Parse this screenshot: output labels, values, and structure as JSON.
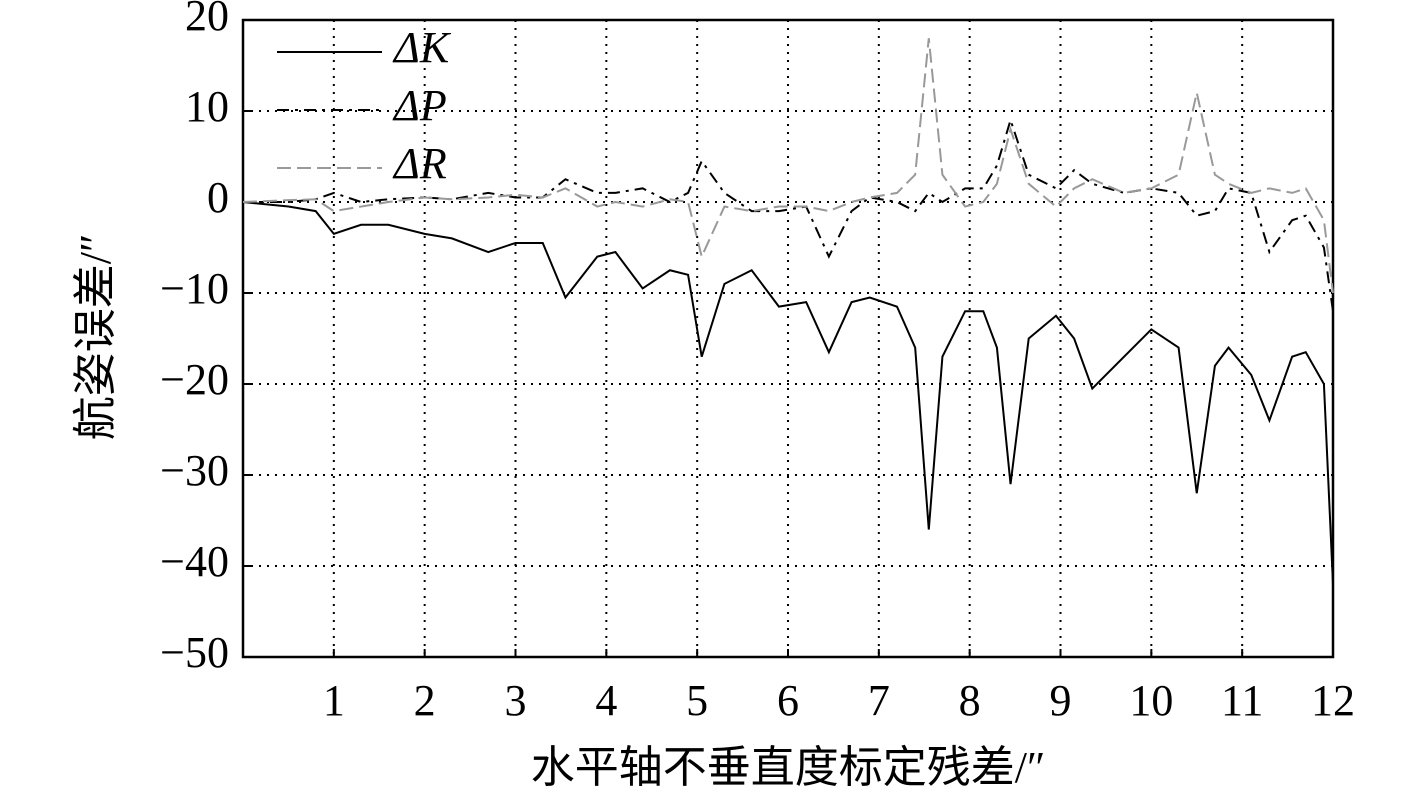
{
  "chart_data": {
    "type": "line",
    "ylabel": "航姿误差/″",
    "xlabel": "水平轴不垂直度标定残差/″",
    "x": [
      0,
      0.5,
      0.8,
      1.0,
      1.3,
      1.6,
      2.0,
      2.3,
      2.7,
      3.0,
      3.3,
      3.55,
      3.9,
      4.1,
      4.4,
      4.7,
      4.9,
      5.05,
      5.3,
      5.6,
      5.9,
      6.2,
      6.45,
      6.7,
      6.9,
      7.2,
      7.4,
      7.55,
      7.7,
      7.95,
      8.15,
      8.3,
      8.45,
      8.65,
      8.95,
      9.15,
      9.35,
      9.7,
      10.0,
      10.3,
      10.5,
      10.7,
      10.85,
      11.1,
      11.3,
      11.55,
      11.7,
      11.9,
      12.0
    ],
    "series": [
      {
        "name": "ΔK",
        "color": "#000000",
        "dash": "solid",
        "values": [
          0,
          -0.5,
          -1,
          -3.5,
          -2.5,
          -2.5,
          -3.5,
          -4,
          -5.5,
          -4.5,
          -4.5,
          -10.5,
          -6,
          -5.5,
          -9.5,
          -7.5,
          -8,
          -17,
          -9,
          -7.5,
          -11.5,
          -11,
          -16.5,
          -11,
          -10.5,
          -11.5,
          -16,
          -36,
          -17,
          -12,
          -12,
          -16,
          -31,
          -15,
          -12.5,
          -15,
          -20.5,
          -17,
          -14,
          -16,
          -32,
          -18,
          -16,
          -19,
          -24,
          -17,
          -16.5,
          -20,
          -42
        ]
      },
      {
        "name": "ΔP",
        "color": "#000000",
        "dash": "dashdot",
        "values": [
          0,
          0,
          0.3,
          1,
          0,
          0.3,
          0.5,
          0.3,
          1,
          0.5,
          0.5,
          2.5,
          1,
          1,
          1.5,
          0,
          1,
          4.5,
          1,
          -1,
          -1,
          -0.5,
          -6,
          -1,
          0.5,
          0,
          -1,
          1,
          0,
          1.5,
          1.5,
          4,
          9,
          3,
          1.5,
          3.5,
          2,
          1,
          1.5,
          1,
          -1.5,
          -1,
          1.5,
          1,
          -5.5,
          -2,
          -1.5,
          -5,
          -12
        ]
      },
      {
        "name": "ΔR",
        "color": "#999999",
        "dash": "dashed",
        "values": [
          0,
          0.2,
          0.3,
          -1,
          -0.5,
          0,
          0.5,
          0.3,
          0.5,
          0.8,
          0.5,
          1.5,
          -0.5,
          0,
          -0.5,
          0.3,
          0,
          -6,
          -0.5,
          -1,
          -0.5,
          -0.5,
          -1,
          0,
          0.5,
          1,
          3,
          18,
          3,
          -0.5,
          0,
          2,
          8,
          2,
          -0.5,
          1.5,
          2.5,
          1,
          1.5,
          3,
          12,
          3,
          2,
          1,
          1.5,
          1,
          1.5,
          -2,
          -10
        ]
      }
    ],
    "xlim": [
      0,
      12
    ],
    "xticks": [
      1,
      2,
      3,
      4,
      5,
      6,
      7,
      8,
      9,
      10,
      11,
      12
    ],
    "ylim": [
      -50,
      20
    ],
    "yticks": [
      20,
      10,
      0,
      {
        "value": -10,
        "label": "−10"
      },
      {
        "value": -20,
        "label": "−20"
      },
      {
        "value": -30,
        "label": "−30"
      },
      {
        "value": -40,
        "label": "−40"
      },
      {
        "value": -50,
        "label": "−50"
      }
    ],
    "grid": true,
    "legend": "upper left"
  }
}
